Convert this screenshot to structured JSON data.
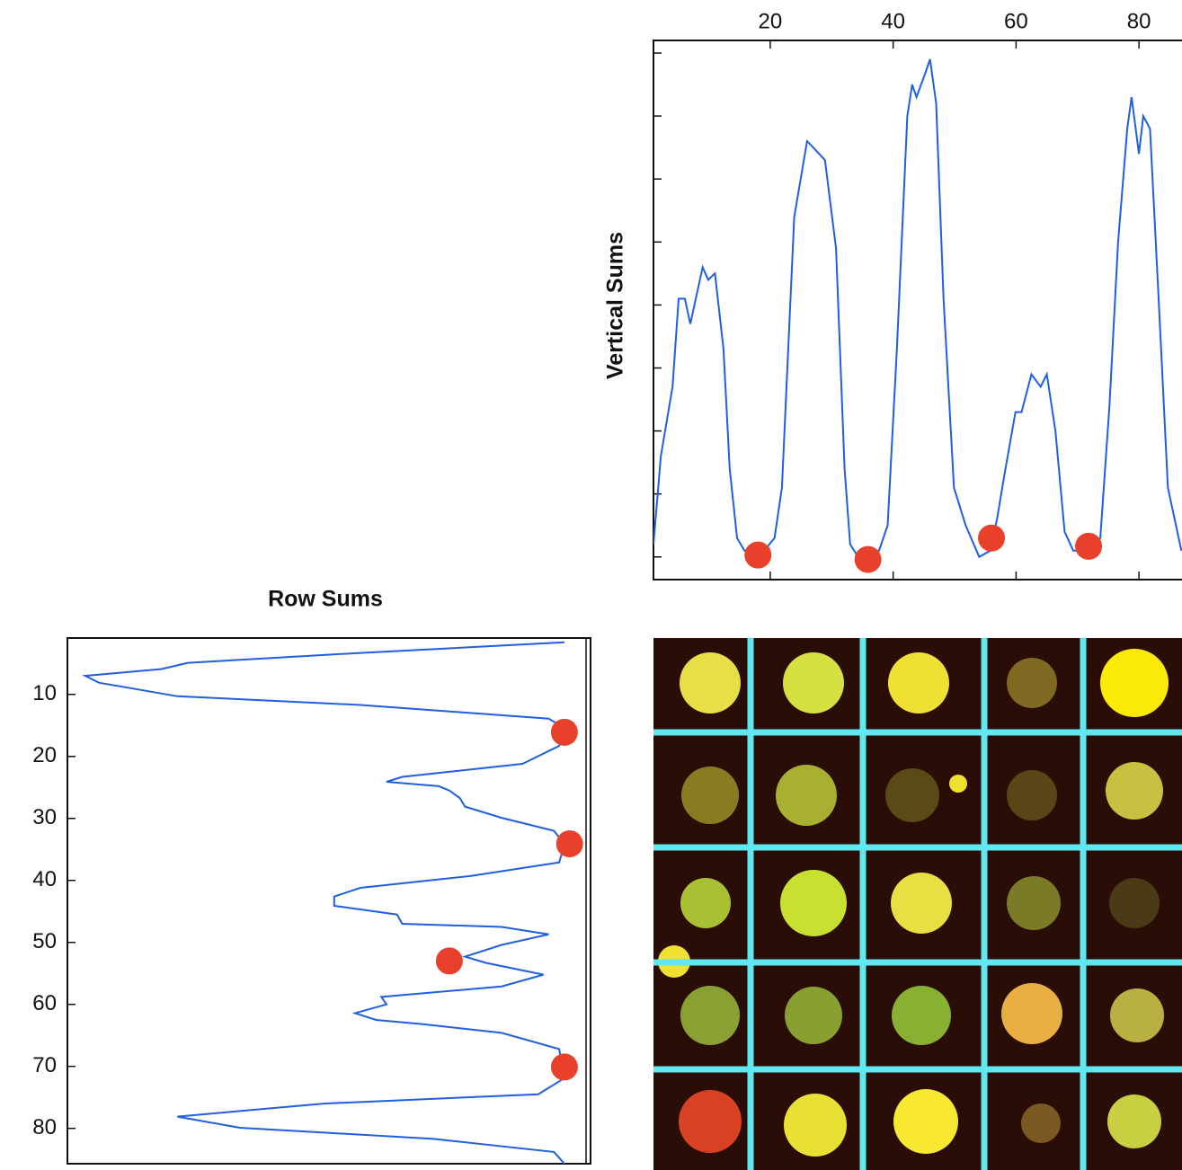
{
  "chart_data": [
    {
      "type": "line",
      "ylabel": "Vertical Sums",
      "xlim": [
        1,
        87
      ],
      "xticks": [
        20,
        40,
        60,
        80
      ],
      "ylim": [
        -0.36,
        8.2
      ],
      "yticks": [
        0,
        1,
        2,
        3,
        4,
        5,
        6,
        7,
        8
      ],
      "series": [
        {
          "color": "#1f5fe0",
          "x": [
            1,
            2.2,
            4.1,
            5.1,
            6.1,
            7,
            9,
            9.9,
            11,
            12.4,
            13.4,
            14.6,
            15.8,
            19,
            20.7,
            21.9,
            23.9,
            26,
            27,
            28.9,
            30.7,
            32.1,
            33,
            34.3,
            37.7,
            39.1,
            40.6,
            42.3,
            43.1,
            43.8,
            45.3,
            46,
            47,
            48.2,
            49.9,
            51.8,
            54,
            55.8,
            56.9,
            58.1,
            59.9,
            60.9,
            62.5,
            64,
            65,
            66.4,
            67.9,
            69.3,
            71.8,
            73.7,
            75.2,
            76.6,
            78.1,
            78.8,
            80,
            80.7,
            81.8,
            83.2,
            84.7,
            86.9
          ],
          "values": [
            0.2,
            1.6,
            2.7,
            4.1,
            4.1,
            3.7,
            4.6,
            4.4,
            4.5,
            3.3,
            1.4,
            0.3,
            0.1,
            0.1,
            0.3,
            1.1,
            5.4,
            6.6,
            6.5,
            6.3,
            4.9,
            1.4,
            0.2,
            0,
            0.1,
            0.5,
            3.3,
            7,
            7.5,
            7.3,
            7.7,
            7.9,
            7.2,
            4.1,
            1.1,
            0.5,
            0,
            0.1,
            0.6,
            1.3,
            2.3,
            2.3,
            2.9,
            2.7,
            2.9,
            2,
            0.4,
            0.1,
            0.1,
            0.3,
            2.4,
            5,
            6.8,
            7.3,
            6.4,
            7,
            6.8,
            4.1,
            1.1,
            0.1
          ]
        }
      ],
      "points": {
        "color": "#e8402a",
        "x": [
          18,
          35.9,
          56,
          71.8
        ],
        "values": [
          0.03,
          -0.04,
          0.3,
          0.17
        ]
      }
    },
    {
      "type": "line",
      "orientation": "horizontal",
      "title": "Row Sums",
      "xlim": [
        0,
        10
      ],
      "ylim": [
        0.9,
        85.7
      ],
      "yticks": [
        10,
        20,
        30,
        40,
        50,
        60,
        70,
        80
      ],
      "series": [
        {
          "color": "#1f5fe0",
          "y": [
            1.6,
            3.3,
            4.9,
            5.9,
            7,
            8.1,
            10.3,
            11.7,
            13.9,
            15.4,
            18.3,
            21.2,
            23.3,
            24.1,
            24.8,
            25.5,
            26.7,
            28.1,
            29.9,
            32,
            34.2,
            37.1,
            39.3,
            41.2,
            42.6,
            44.1,
            45.5,
            47,
            47.5,
            48.7,
            50.4,
            52.3,
            53.3,
            55.2,
            57.1,
            58.8,
            60,
            61.4,
            62.5,
            63.2,
            64.6,
            67.2,
            71.9,
            74.5,
            76,
            78.1,
            79.9,
            81.7,
            83.8,
            85.7
          ],
          "values": [
            9.5,
            5.6,
            2.3,
            1.8,
            0.34,
            0.6,
            2.1,
            5.6,
            9.2,
            9.5,
            9.4,
            8.7,
            6.4,
            6.1,
            7.1,
            7.3,
            7.5,
            7.6,
            8.3,
            9.3,
            9.5,
            9.4,
            7.7,
            5.6,
            5.1,
            5.1,
            6.3,
            6.4,
            8.3,
            9.2,
            8.3,
            7.6,
            8,
            9.1,
            8.3,
            6,
            6.1,
            5.5,
            5.9,
            6.8,
            8.3,
            9.4,
            9.5,
            9,
            4.9,
            2.1,
            3.3,
            7,
            9.3,
            9.5
          ]
        }
      ],
      "points": {
        "color": "#e8402a",
        "y": [
          16.1,
          34.1,
          53,
          70.1
        ],
        "values": [
          9.5,
          9.6,
          7.3,
          9.5
        ]
      }
    }
  ]
}
